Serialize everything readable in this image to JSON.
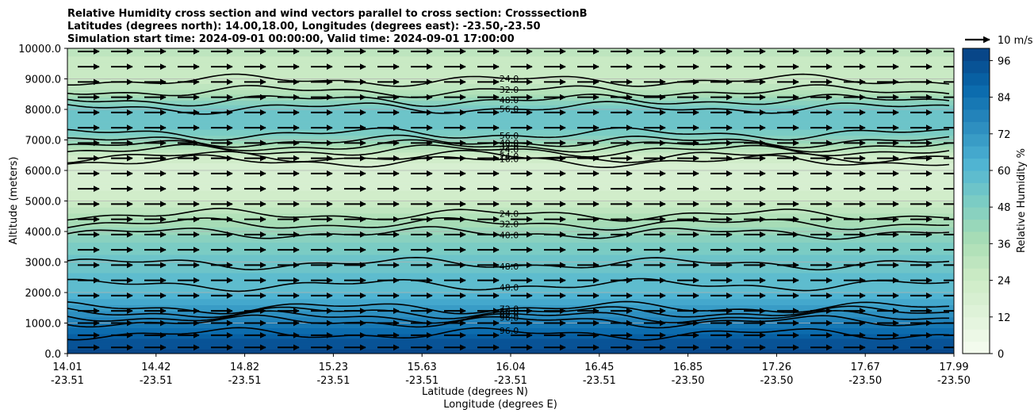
{
  "chart_data": {
    "type": "contour",
    "title_lines": [
      "Relative Humidity cross section and wind vectors parallel to cross section: CrosssectionB",
      "Latitudes (degrees north): 14.00,18.00, Longitudes (degrees east): -23.50,-23.50",
      "Simulation start time: 2024-09-01 00:00:00, Valid time: 2024-09-01 17:00:00"
    ],
    "ylabel": "Altitude (meters)",
    "xlabel_lat": "Latitude (degrees N)",
    "xlabel_lon": "Longitude (degrees E)",
    "ylim": [
      0,
      10000
    ],
    "y_ticks": [
      "0.0",
      "1000.0",
      "2000.0",
      "3000.0",
      "4000.0",
      "5000.0",
      "6000.0",
      "7000.0",
      "8000.0",
      "9000.0",
      "10000.0"
    ],
    "x_ticks": [
      {
        "lat": "14.01",
        "lon": "-23.51"
      },
      {
        "lat": "14.42",
        "lon": "-23.51"
      },
      {
        "lat": "14.82",
        "lon": "-23.51"
      },
      {
        "lat": "15.23",
        "lon": "-23.51"
      },
      {
        "lat": "15.63",
        "lon": "-23.51"
      },
      {
        "lat": "16.04",
        "lon": "-23.51"
      },
      {
        "lat": "16.45",
        "lon": "-23.51"
      },
      {
        "lat": "16.85",
        "lon": "-23.50"
      },
      {
        "lat": "17.26",
        "lon": "-23.50"
      },
      {
        "lat": "17.67",
        "lon": "-23.50"
      },
      {
        "lat": "17.99",
        "lon": "-23.50"
      }
    ],
    "colorbar": {
      "label": "Relative Humidity %",
      "range": [
        0,
        100
      ],
      "step": 4,
      "ticks": [
        "0",
        "12",
        "24",
        "36",
        "48",
        "60",
        "72",
        "84",
        "96"
      ]
    },
    "quiver_key": "10 m/s",
    "rh_profile": [
      {
        "alt": 0,
        "rh": 98
      },
      {
        "alt": 500,
        "rh": 92
      },
      {
        "alt": 1000,
        "rh": 80
      },
      {
        "alt": 1500,
        "rh": 70
      },
      {
        "alt": 2000,
        "rh": 60
      },
      {
        "alt": 2500,
        "rh": 57
      },
      {
        "alt": 3000,
        "rh": 54
      },
      {
        "alt": 3500,
        "rh": 50
      },
      {
        "alt": 4000,
        "rh": 42
      },
      {
        "alt": 4500,
        "rh": 34
      },
      {
        "alt": 5000,
        "rh": 24
      },
      {
        "alt": 5500,
        "rh": 18
      },
      {
        "alt": 6000,
        "rh": 16
      },
      {
        "alt": 6500,
        "rh": 24
      },
      {
        "alt": 7000,
        "rh": 44
      },
      {
        "alt": 7500,
        "rh": 56
      },
      {
        "alt": 8000,
        "rh": 54
      },
      {
        "alt": 8500,
        "rh": 36
      },
      {
        "alt": 9000,
        "rh": 24
      },
      {
        "alt": 9500,
        "rh": 26
      },
      {
        "alt": 10000,
        "rh": 30
      }
    ],
    "contour_levels": [
      {
        "alt": 6300,
        "label": "16.0"
      },
      {
        "alt": 6650,
        "label": "24.0"
      },
      {
        "alt": 6800,
        "label": "32.0"
      },
      {
        "alt": 6950,
        "label": "40.0"
      },
      {
        "alt": 7200,
        "label": "56.0"
      },
      {
        "alt": 8050,
        "label": "56.0"
      },
      {
        "alt": 8300,
        "label": "48.0"
      },
      {
        "alt": 8600,
        "label": "32.0"
      },
      {
        "alt": 8950,
        "label": "24.0"
      },
      {
        "alt": 4550,
        "label": "24.0"
      },
      {
        "alt": 4250,
        "label": "32.0"
      },
      {
        "alt": 3950,
        "label": "40.0"
      },
      {
        "alt": 2950,
        "label": "48.0"
      },
      {
        "alt": 2250,
        "label": "48.0"
      },
      {
        "alt": 1500,
        "label": "72.0"
      },
      {
        "alt": 1350,
        "label": "80.0"
      },
      {
        "alt": 1200,
        "label": "88.0"
      },
      {
        "alt": 1050,
        "label": "96.0"
      },
      {
        "alt": 650,
        "label": "96.0"
      },
      {
        "alt": 6450,
        "label": "24.0"
      }
    ],
    "wind_levels_m": [
      200,
      600,
      1000,
      1400,
      1900,
      2400,
      2900,
      3400,
      3900,
      4400,
      4900,
      5400,
      5900,
      6400,
      6900,
      7400,
      7900,
      8400,
      8900,
      9400,
      9900
    ]
  }
}
